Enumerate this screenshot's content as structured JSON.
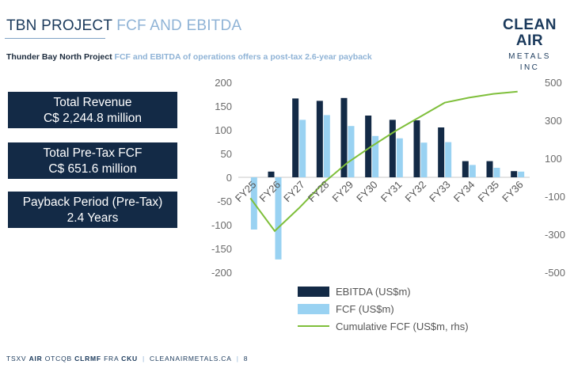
{
  "header": {
    "title_main": "TBN PROJECT",
    "title_accent": "FCF AND EBITDA",
    "subtitle_main": "Thunder Bay North Project",
    "subtitle_accent": "FCF and EBITDA of operations offers a post-tax 2.6-year payback"
  },
  "logo": {
    "line1": "CLEAN AIR",
    "line2": "METALS INC"
  },
  "kpis": [
    {
      "label": "Total Revenue",
      "value": "C$ 2,244.8 million"
    },
    {
      "label": "Total Pre-Tax FCF",
      "value": "C$ 651.6 million"
    },
    {
      "label": "Payback Period (Pre-Tax)",
      "value": "2.4 Years"
    }
  ],
  "colors": {
    "ebitda": "#132a46",
    "fcf": "#99d2f2",
    "cumulative": "#7fbf3b",
    "navy": "#1b3a5c",
    "accent": "#8fb3d6"
  },
  "chart_data": {
    "type": "bar",
    "categories": [
      "FY25",
      "FY26",
      "FY27",
      "FY28",
      "FY29",
      "FY30",
      "FY31",
      "FY32",
      "FY33",
      "FY34",
      "FY35",
      "FY36"
    ],
    "series": [
      {
        "name": "EBITDA (US$m)",
        "kind": "bar",
        "axis": "left",
        "values": [
          0,
          12,
          166,
          161,
          167,
          130,
          121,
          120,
          105,
          34,
          34,
          13
        ]
      },
      {
        "name": "FCF (US$m)",
        "kind": "bar",
        "axis": "left",
        "values": [
          -110,
          -173,
          121,
          131,
          108,
          87,
          82,
          73,
          74,
          26,
          20,
          12
        ]
      },
      {
        "name": "Cumulative FCF (US$m, rhs)",
        "kind": "line",
        "axis": "right",
        "values": [
          -110,
          -283,
          -162,
          -31,
          77,
          164,
          246,
          319,
          393,
          419,
          439,
          451
        ]
      }
    ],
    "ylim": [
      -200,
      200
    ],
    "y_ticks": [
      200,
      150,
      100,
      50,
      0,
      -50,
      -100,
      -150,
      -200
    ],
    "y2lim": [
      -500,
      500
    ],
    "y2_ticks": [
      500,
      300,
      100,
      -100,
      -300,
      -500
    ],
    "grid": false,
    "legend_position": "bottom"
  },
  "footer": {
    "p1": "TSXV ",
    "t1": "AIR",
    "p2": "  OTCQB ",
    "t2": "CLRMF",
    "p3": "  FRA ",
    "t3": "CKU",
    "sep": "|",
    "site": "CLEANAIRMETALS.CA",
    "page": "8"
  }
}
